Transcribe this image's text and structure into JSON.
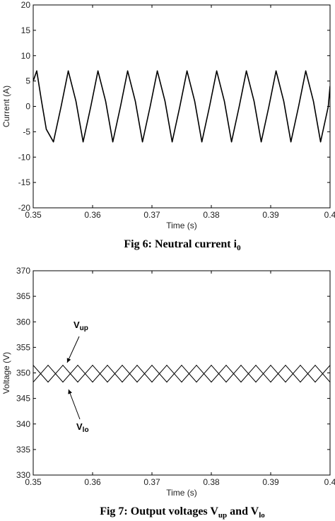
{
  "chart_data": [
    {
      "type": "line",
      "caption": "Fig 6: Neutral current i",
      "caption_sub": "0",
      "xlabel": "Time (s)",
      "ylabel": "Current (A)",
      "xlim": [
        0.35,
        0.4
      ],
      "ylim": [
        -20,
        20
      ],
      "xticks": [
        0.35,
        0.36,
        0.37,
        0.38,
        0.39,
        0.4
      ],
      "xtick_labels": [
        "0.35",
        "0.36",
        "0.37",
        "0.38",
        "0.39",
        "0.4"
      ],
      "yticks": [
        20,
        15,
        10,
        5,
        0,
        -5,
        -10,
        -15,
        -20
      ],
      "ytick_labels": [
        "20",
        "15",
        "10",
        "5",
        "0",
        "-5",
        "-10",
        "-15",
        "-20"
      ],
      "series": [
        {
          "x": [
            0.35,
            0.3506,
            0.3514,
            0.3522,
            0.3534,
            0.3547,
            0.3559,
            0.3572,
            0.3584,
            0.3597,
            0.3609,
            0.3622,
            0.3634,
            0.3647,
            0.3659,
            0.3672,
            0.3684,
            0.3697,
            0.3709,
            0.3722,
            0.3734,
            0.3747,
            0.3759,
            0.3772,
            0.3784,
            0.3797,
            0.3809,
            0.3822,
            0.3834,
            0.3847,
            0.3859,
            0.3872,
            0.3884,
            0.3897,
            0.3909,
            0.3922,
            0.3934,
            0.3947,
            0.3959,
            0.3972,
            0.3984,
            0.3997,
            0.4
          ],
          "y": [
            5,
            7,
            1,
            -4.5,
            -7,
            0,
            7,
            1,
            -7,
            0,
            7,
            1,
            -7,
            0,
            7,
            1,
            -7,
            0,
            7,
            1,
            -7,
            0,
            7,
            1,
            -7,
            0,
            7,
            1,
            -7,
            0,
            7,
            1,
            -7,
            0,
            7,
            1,
            -7,
            0,
            7,
            1,
            -7,
            0,
            4
          ]
        }
      ]
    },
    {
      "type": "line",
      "caption": "Fig 7: Output voltages V",
      "caption_sub1": "up",
      "caption_mid": " and V",
      "caption_sub2": "lo",
      "xlabel": "Time (s)",
      "ylabel": "Voltage (V)",
      "xlim": [
        0.35,
        0.4
      ],
      "ylim": [
        330,
        370
      ],
      "xticks": [
        0.35,
        0.36,
        0.37,
        0.38,
        0.39,
        0.4
      ],
      "xtick_labels": [
        "0.35",
        "0.36",
        "0.37",
        "0.38",
        "0.39",
        "0.4"
      ],
      "yticks": [
        370,
        365,
        360,
        355,
        350,
        345,
        340,
        335,
        330
      ],
      "ytick_labels": [
        "370",
        "365",
        "360",
        "355",
        "350",
        "345",
        "340",
        "335",
        "330"
      ],
      "annotations": [
        {
          "label": "V",
          "sub": "up"
        },
        {
          "label": "V",
          "sub": "lo"
        }
      ],
      "series": [
        {
          "label_ref": "up",
          "x": [
            0.35,
            0.3525,
            0.355,
            0.3575,
            0.36,
            0.3625,
            0.365,
            0.3675,
            0.37,
            0.3725,
            0.375,
            0.3775,
            0.38,
            0.3825,
            0.385,
            0.3875,
            0.39,
            0.3925,
            0.395,
            0.3975,
            0.4
          ],
          "y": [
            351.5,
            348.2,
            351.5,
            348.2,
            351.5,
            348.2,
            351.5,
            348.2,
            351.5,
            348.2,
            351.5,
            348.2,
            351.5,
            348.2,
            351.5,
            348.2,
            351.5,
            348.2,
            351.5,
            348.2,
            351.5
          ]
        },
        {
          "label_ref": "lo",
          "x": [
            0.35,
            0.3525,
            0.355,
            0.3575,
            0.36,
            0.3625,
            0.365,
            0.3675,
            0.37,
            0.3725,
            0.375,
            0.3775,
            0.38,
            0.3825,
            0.385,
            0.3875,
            0.39,
            0.3925,
            0.395,
            0.3975,
            0.4
          ],
          "y": [
            348.2,
            351.5,
            348.2,
            351.5,
            348.2,
            351.5,
            348.2,
            351.5,
            348.2,
            351.5,
            348.2,
            351.5,
            348.2,
            351.5,
            348.2,
            351.5,
            348.2,
            351.5,
            348.2,
            351.5,
            348.2
          ]
        }
      ]
    }
  ]
}
